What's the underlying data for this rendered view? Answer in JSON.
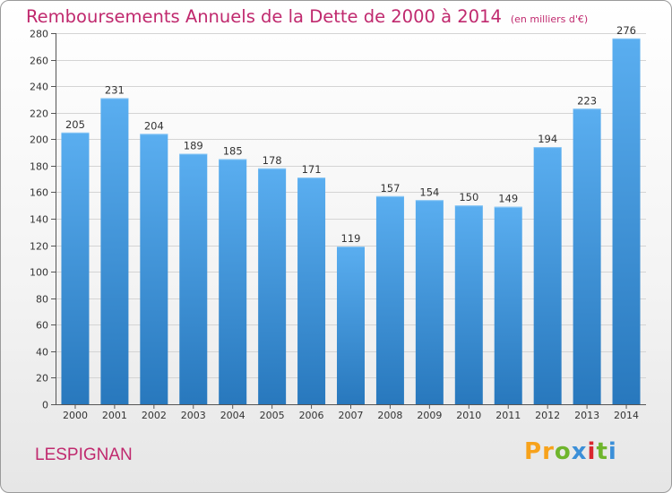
{
  "header": {
    "title": "Remboursements Annuels de la Dette de 2000 à 2014",
    "unit": "(en milliers d'€)"
  },
  "footer": {
    "commune": "LESPIGNAN",
    "logo": "Proxiti",
    "logo_colors": [
      "#f7a21b",
      "#f7a21b",
      "#6fb52c",
      "#3b8fd8",
      "#d9272e",
      "#6fb52c",
      "#3b8fd8"
    ]
  },
  "chart_data": {
    "type": "bar",
    "title": "Remboursements Annuels de la Dette de 2000 à 2014",
    "xlabel": "",
    "ylabel": "",
    "categories": [
      "2000",
      "2001",
      "2002",
      "2003",
      "2004",
      "2005",
      "2006",
      "2007",
      "2008",
      "2009",
      "2010",
      "2011",
      "2012",
      "2013",
      "2014"
    ],
    "values": [
      205,
      231,
      204,
      189,
      185,
      178,
      171,
      119,
      157,
      154,
      150,
      149,
      194,
      223,
      276
    ],
    "ylim": [
      0,
      280
    ],
    "yticks": [
      0,
      20,
      40,
      60,
      80,
      100,
      120,
      140,
      160,
      180,
      200,
      220,
      240,
      260,
      280
    ],
    "grid": true,
    "bar_color_top": "#5aaef0",
    "bar_color_bottom": "#2878bd"
  }
}
